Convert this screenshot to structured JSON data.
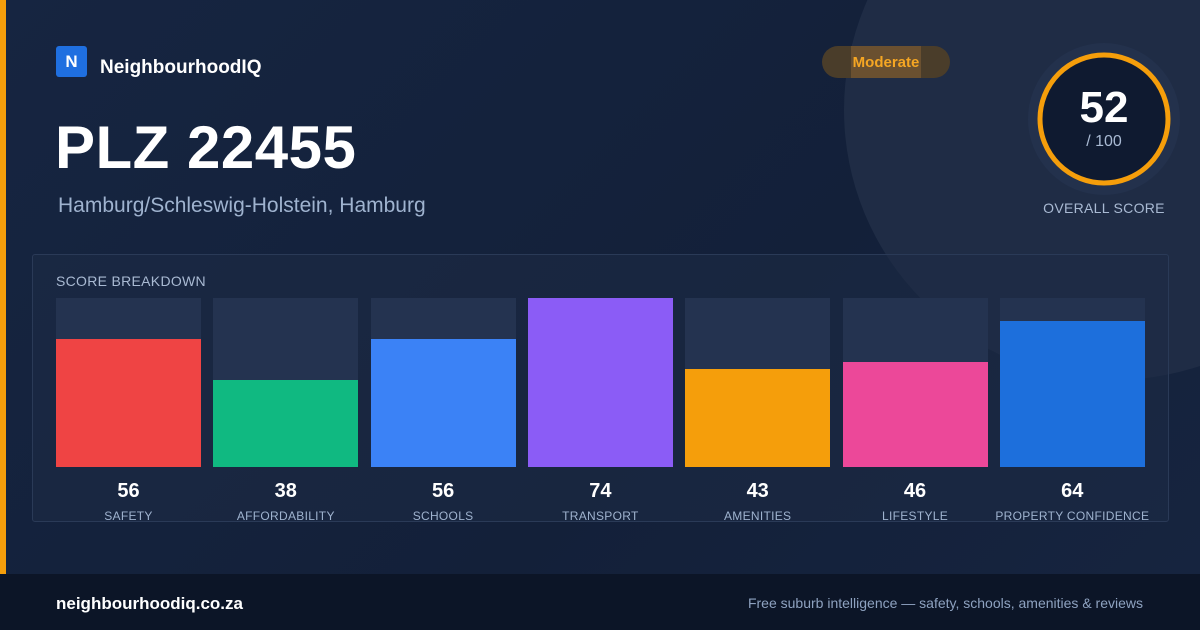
{
  "brand": {
    "logo_letter": "N",
    "name": "NeighbourhoodIQ"
  },
  "title": "PLZ 22455",
  "subtitle": "Hamburg/Schleswig-Holstein, Hamburg",
  "rating_badge": {
    "label": "Moderate",
    "color": "#f5a623"
  },
  "overall": {
    "score": "52",
    "max": "/ 100",
    "label": "OVERALL SCORE",
    "value": 52,
    "ring_color": "#f59e0b"
  },
  "breakdown": {
    "title": "SCORE BREAKDOWN",
    "items": [
      {
        "label": "SAFETY",
        "value": 56,
        "color": "#ef4444"
      },
      {
        "label": "AFFORDABILITY",
        "value": 38,
        "color": "#10b981"
      },
      {
        "label": "SCHOOLS",
        "value": 56,
        "color": "#3b82f6"
      },
      {
        "label": "TRANSPORT",
        "value": 74,
        "color": "#8b5cf6"
      },
      {
        "label": "AMENITIES",
        "value": 43,
        "color": "#f59e0b"
      },
      {
        "label": "LIFESTYLE",
        "value": 46,
        "color": "#ec4899"
      },
      {
        "label": "PROPERTY CONFIDENCE",
        "value": 64,
        "color": "#1d6fdc"
      }
    ]
  },
  "footer": {
    "site": "neighbourhoodiq.co.za",
    "tagline": "Free suburb intelligence — safety, schools, amenities & reviews"
  },
  "chart_data": {
    "type": "bar",
    "title": "SCORE BREAKDOWN",
    "categories": [
      "SAFETY",
      "AFFORDABILITY",
      "SCHOOLS",
      "TRANSPORT",
      "AMENITIES",
      "LIFESTYLE",
      "PROPERTY CONFIDENCE"
    ],
    "values": [
      56,
      38,
      56,
      74,
      43,
      46,
      64
    ],
    "ylim": [
      0,
      100
    ]
  }
}
